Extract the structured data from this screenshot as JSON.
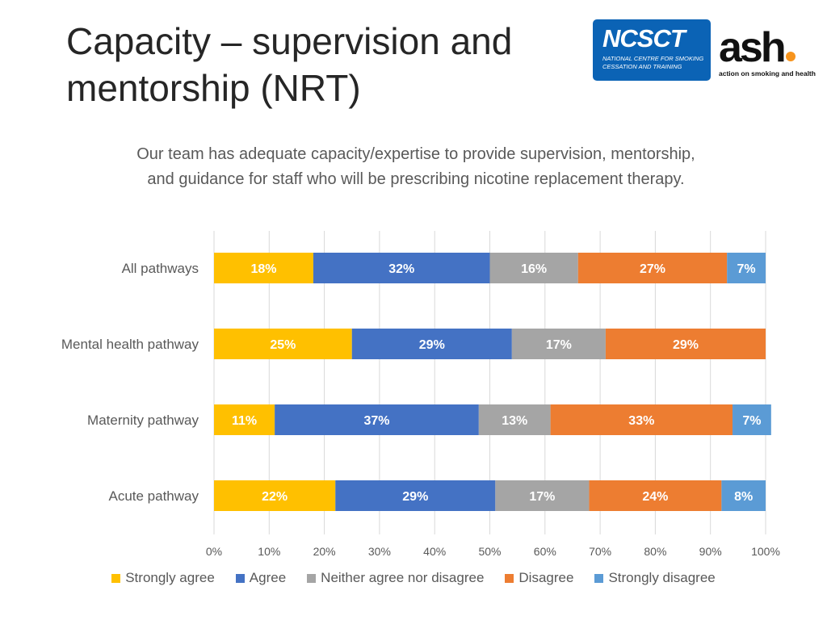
{
  "slide": {
    "title_lines": [
      "Capacity – supervision and",
      "mentorship (NRT)"
    ]
  },
  "logos": {
    "ncsct": {
      "word": "NCSCT",
      "tag_lines": [
        "NATIONAL CENTRE FOR SMOKING",
        "CESSATION AND TRAINING"
      ]
    },
    "ash": {
      "word": "ash",
      "tag": "action on smoking and health"
    }
  },
  "chart_data": {
    "type": "bar",
    "orientation": "horizontal",
    "stacked": true,
    "title": "Our team has adequate capacity/expertise to provide supervision, mentorship, and guidance for staff who will be prescribing nicotine replacement therapy.",
    "categories": [
      "All pathways",
      "Mental health pathway",
      "Maternity pathway",
      "Acute pathway"
    ],
    "series": [
      {
        "name": "Strongly agree",
        "color": "#FFC000",
        "values": [
          18,
          25,
          11,
          22
        ]
      },
      {
        "name": "Agree",
        "color": "#4472C4",
        "values": [
          32,
          29,
          37,
          29
        ]
      },
      {
        "name": "Neither agree nor disagree",
        "color": "#A5A5A5",
        "values": [
          16,
          17,
          13,
          17
        ]
      },
      {
        "name": "Disagree",
        "color": "#ED7D31",
        "values": [
          27,
          29,
          33,
          24
        ]
      },
      {
        "name": "Strongly disagree",
        "color": "#5B9BD5",
        "values": [
          7,
          0,
          7,
          8
        ]
      }
    ],
    "data_labels": [
      [
        "18%",
        "25%",
        "11%",
        "22%"
      ],
      [
        "32%",
        "29%",
        "37%",
        "29%"
      ],
      [
        "16%",
        "17%",
        "13%",
        "17%"
      ],
      [
        "27%",
        "29%",
        "33%",
        "24%"
      ],
      [
        "7%",
        "",
        "7%",
        "8%"
      ]
    ],
    "x_ticks": [
      "0%",
      "10%",
      "20%",
      "30%",
      "40%",
      "50%",
      "60%",
      "70%",
      "80%",
      "90%",
      "100%"
    ],
    "xlim": [
      0,
      100
    ],
    "grid": true,
    "legend_position": "bottom"
  }
}
